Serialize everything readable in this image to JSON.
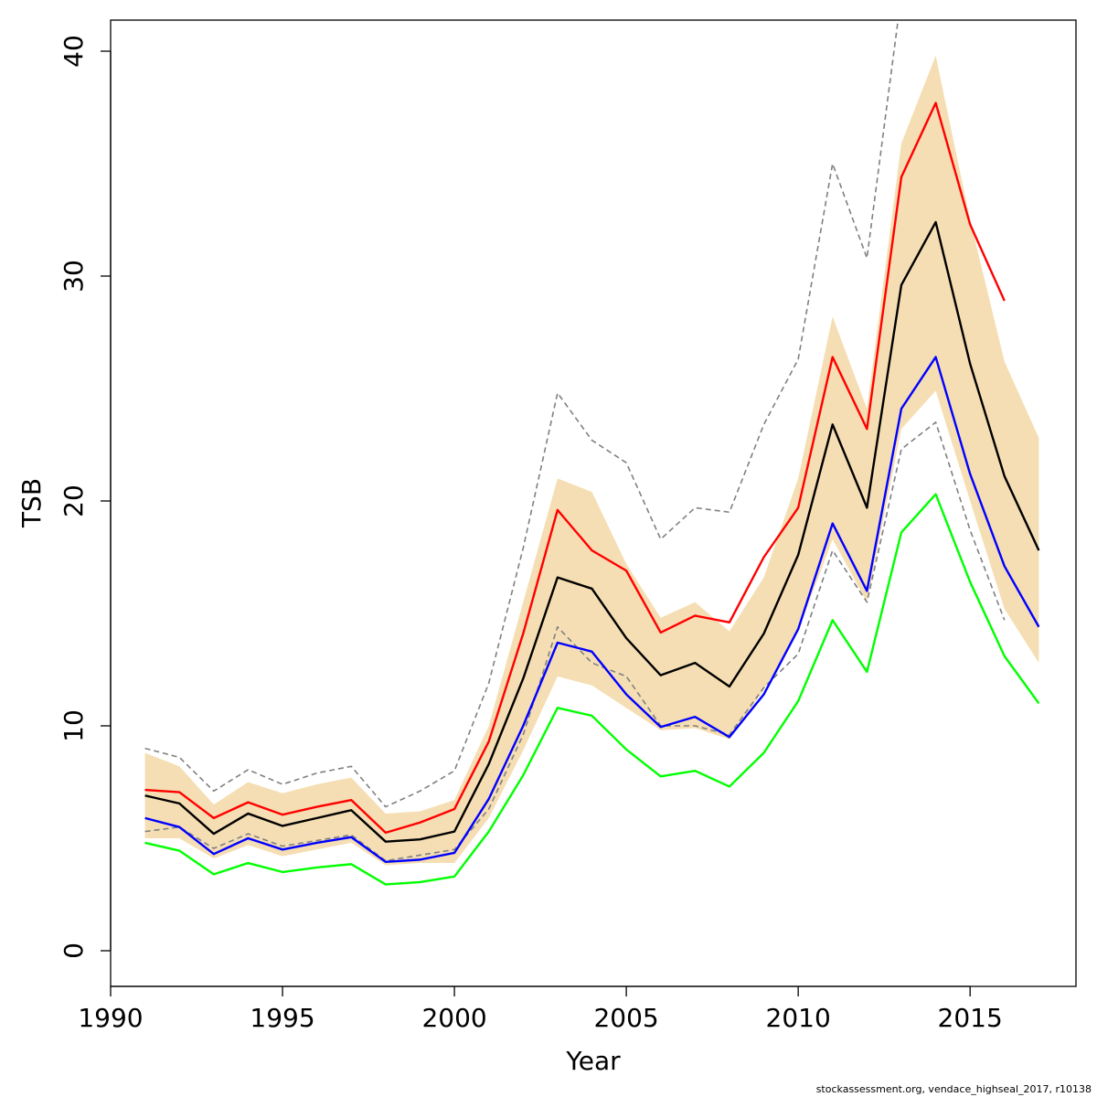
{
  "footer_text": "stockassessment.org, vendace_highseal_2017, r10138",
  "chart_data": {
    "type": "line",
    "xlabel": "Year",
    "ylabel": "TSB",
    "xlim": [
      1990,
      2018
    ],
    "ylim": [
      0,
      40
    ],
    "x_ticks": [
      1990,
      1995,
      2000,
      2005,
      2010,
      2015
    ],
    "y_ticks": [
      0,
      10,
      20,
      30,
      40
    ],
    "x_tick_labels": [
      "1990",
      "1995",
      "2000",
      "2005",
      "2010",
      "2015"
    ],
    "y_tick_labels": [
      "0",
      "10",
      "20",
      "30",
      "40"
    ],
    "grid": false,
    "colors": {
      "band": "#F5DEB3",
      "main": "#000000",
      "red": "#FF0000",
      "blue": "#0000FF",
      "green": "#00FF00",
      "dashed": "#808080"
    },
    "band": {
      "x": [
        1991,
        1992,
        1993,
        1994,
        1995,
        1996,
        1997,
        1998,
        1999,
        2000,
        2001,
        2002,
        2003,
        2004,
        2005,
        2006,
        2007,
        2008,
        2009,
        2010,
        2011,
        2012,
        2013,
        2014,
        2015,
        2016,
        2017
      ],
      "upper": [
        8.8,
        8.2,
        6.5,
        7.5,
        7.0,
        7.4,
        7.7,
        6.1,
        6.2,
        6.7,
        10.0,
        15.5,
        21.0,
        20.4,
        17.2,
        14.8,
        15.5,
        14.2,
        16.6,
        21.0,
        28.2,
        24.1,
        35.9,
        39.8,
        32.5,
        26.2,
        22.8
      ],
      "lower": [
        5.0,
        5.0,
        4.1,
        4.7,
        4.2,
        4.5,
        4.8,
        3.8,
        3.9,
        3.9,
        5.9,
        8.9,
        12.2,
        11.8,
        10.8,
        9.8,
        9.9,
        9.4,
        11.6,
        14.2,
        18.3,
        15.5,
        23.2,
        24.9,
        20.0,
        15.2,
        12.8
      ]
    },
    "series": [
      {
        "x": [
          1991,
          1992,
          1993,
          1994,
          1995,
          1996,
          1997,
          1998,
          1999,
          2000,
          2001,
          2002,
          2003,
          2004,
          2005,
          2006,
          2007,
          2008,
          2009,
          2010,
          2011,
          2012,
          2013,
          2014,
          2015,
          2016,
          2017
        ],
        "values": [
          6.9,
          6.55,
          5.2,
          6.1,
          5.55,
          5.9,
          6.25,
          4.85,
          4.95,
          5.3,
          8.3,
          12.1,
          16.6,
          16.1,
          13.9,
          12.25,
          12.8,
          11.75,
          14.1,
          17.6,
          23.4,
          19.7,
          29.6,
          32.4,
          26.1,
          21.1,
          17.8
        ],
        "color_key": "main",
        "dashed": false
      },
      {
        "x": [
          1991,
          1992,
          1993,
          1994,
          1995,
          1996,
          1997,
          1998,
          1999,
          2000,
          2001,
          2002,
          2003,
          2004,
          2005,
          2006,
          2007,
          2008,
          2009,
          2010,
          2011,
          2012,
          2013,
          2014,
          2015,
          2016
        ],
        "values": [
          7.15,
          7.05,
          5.9,
          6.6,
          6.05,
          6.4,
          6.7,
          5.25,
          5.7,
          6.3,
          9.3,
          14.1,
          19.6,
          17.8,
          16.9,
          14.15,
          14.9,
          14.6,
          17.5,
          19.7,
          26.4,
          23.2,
          34.4,
          37.7,
          32.3,
          28.9
        ],
        "color_key": "red",
        "dashed": false
      },
      {
        "x": [
          1991,
          1992,
          1993,
          1994,
          1995,
          1996,
          1997,
          1998,
          1999,
          2000,
          2001,
          2002,
          2003,
          2004,
          2005,
          2006,
          2007,
          2008,
          2009,
          2010,
          2011,
          2012,
          2013,
          2014,
          2015,
          2016,
          2017
        ],
        "values": [
          5.9,
          5.5,
          4.3,
          5.0,
          4.5,
          4.8,
          5.05,
          3.95,
          4.05,
          4.35,
          6.75,
          10.0,
          13.7,
          13.3,
          11.4,
          9.95,
          10.4,
          9.5,
          11.4,
          14.3,
          19.0,
          16.0,
          24.1,
          26.4,
          21.2,
          17.1,
          14.4
        ],
        "color_key": "blue",
        "dashed": false
      },
      {
        "x": [
          1991,
          1992,
          1993,
          1994,
          1995,
          1996,
          1997,
          1998,
          1999,
          2000,
          2001,
          2002,
          2003,
          2004,
          2005,
          2006,
          2007,
          2008,
          2009,
          2010,
          2011,
          2012,
          2013,
          2014,
          2015,
          2016,
          2017
        ],
        "values": [
          4.8,
          4.45,
          3.4,
          3.9,
          3.5,
          3.7,
          3.85,
          2.95,
          3.05,
          3.3,
          5.3,
          7.8,
          10.8,
          10.45,
          8.95,
          7.75,
          8.0,
          7.3,
          8.8,
          11.1,
          14.7,
          12.4,
          18.6,
          20.3,
          16.4,
          13.1,
          11.0
        ],
        "color_key": "green",
        "dashed": false
      },
      {
        "x": [
          1991,
          1992,
          1993,
          1994,
          1995,
          1996,
          1997,
          1998,
          1999,
          2000,
          2001,
          2002,
          2003,
          2004,
          2005,
          2006,
          2007,
          2008,
          2009,
          2010,
          2011,
          2012,
          2013
        ],
        "values": [
          9.0,
          8.6,
          7.1,
          8.05,
          7.4,
          7.9,
          8.2,
          6.4,
          7.1,
          8.0,
          11.9,
          17.9,
          24.8,
          22.7,
          21.7,
          18.3,
          19.7,
          19.5,
          23.4,
          26.3,
          35.0,
          30.8,
          42.5
        ],
        "color_key": "dashed",
        "dashed": true
      },
      {
        "x": [
          1991,
          1992,
          1993,
          1994,
          1995,
          1996,
          1997,
          1998,
          1999,
          2000,
          2001,
          2002,
          2003,
          2004,
          2005,
          2006,
          2007,
          2008,
          2009,
          2010,
          2011,
          2012,
          2013,
          2014,
          2015,
          2016
        ],
        "values": [
          5.3,
          5.5,
          4.55,
          5.2,
          4.65,
          4.9,
          5.15,
          4.0,
          4.25,
          4.5,
          6.3,
          9.6,
          14.4,
          12.8,
          12.2,
          10.0,
          10.0,
          9.6,
          11.7,
          13.2,
          17.8,
          15.5,
          22.3,
          23.5,
          18.7,
          14.7
        ],
        "color_key": "dashed",
        "dashed": true
      }
    ]
  }
}
